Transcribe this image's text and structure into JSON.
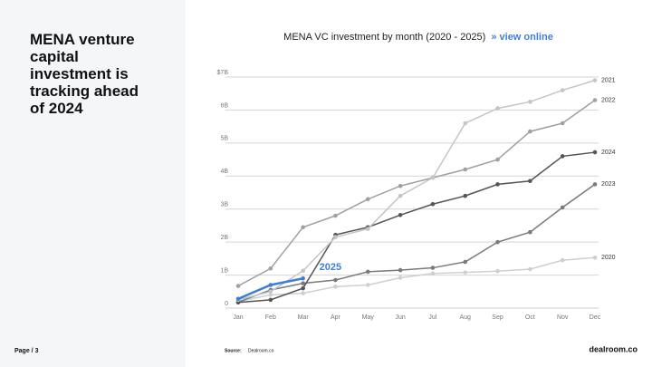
{
  "headline": "MENA venture capital investment is tracking ahead of 2024",
  "page_label": "Page / 3",
  "source_label": "Source:",
  "source": "Dealroom.co",
  "brand": "dealroom.co",
  "chart_data": {
    "type": "line",
    "title": "MENA VC investment by month (2020 - 2025)",
    "link": "» view online",
    "categories": [
      "Jan",
      "Feb",
      "Mar",
      "Apr",
      "May",
      "Jun",
      "Jul",
      "Aug",
      "Sep",
      "Oct",
      "Nov",
      "Dec"
    ],
    "ylim": [
      0,
      7
    ],
    "yticks": [
      0,
      {
        "value": 1,
        "label": "1B"
      },
      {
        "value": 2,
        "label": "2B"
      },
      {
        "value": 3,
        "label": "3B"
      },
      {
        "value": 4,
        "label": "4B"
      },
      {
        "value": 5,
        "label": "5B"
      },
      {
        "value": 6,
        "label": "6B"
      },
      {
        "value": 7,
        "label": "$7B"
      }
    ],
    "grid": true,
    "series": [
      {
        "name": "2020",
        "color": "#cfcfcf",
        "values": [
          0.2,
          0.4,
          0.45,
          0.65,
          0.7,
          0.92,
          1.05,
          1.08,
          1.12,
          1.18,
          1.45,
          1.53
        ]
      },
      {
        "name": "2023",
        "color": "#7a7a7a",
        "values": [
          0.18,
          0.55,
          0.75,
          0.85,
          1.1,
          1.15,
          1.22,
          1.4,
          2.0,
          2.3,
          3.05,
          3.75
        ]
      },
      {
        "name": "2024",
        "color": "#555555",
        "values": [
          0.17,
          0.25,
          0.6,
          2.22,
          2.45,
          2.82,
          3.15,
          3.4,
          3.75,
          3.85,
          4.6,
          4.72
        ]
      },
      {
        "name": "2022",
        "color": "#a0a0a0",
        "values": [
          0.67,
          1.2,
          2.45,
          2.8,
          3.3,
          3.7,
          3.95,
          4.2,
          4.5,
          5.35,
          5.6,
          6.3
        ]
      },
      {
        "name": "2021",
        "color": "#c4c4c4",
        "values": [
          0.25,
          0.5,
          1.13,
          2.15,
          2.4,
          3.4,
          3.95,
          5.6,
          6.05,
          6.25,
          6.6,
          6.9
        ]
      },
      {
        "name": "2025",
        "color": "#3f7fd6",
        "values": [
          0.28,
          0.7,
          0.9,
          null,
          null,
          null,
          null,
          null,
          null,
          null,
          null,
          null
        ]
      }
    ]
  }
}
